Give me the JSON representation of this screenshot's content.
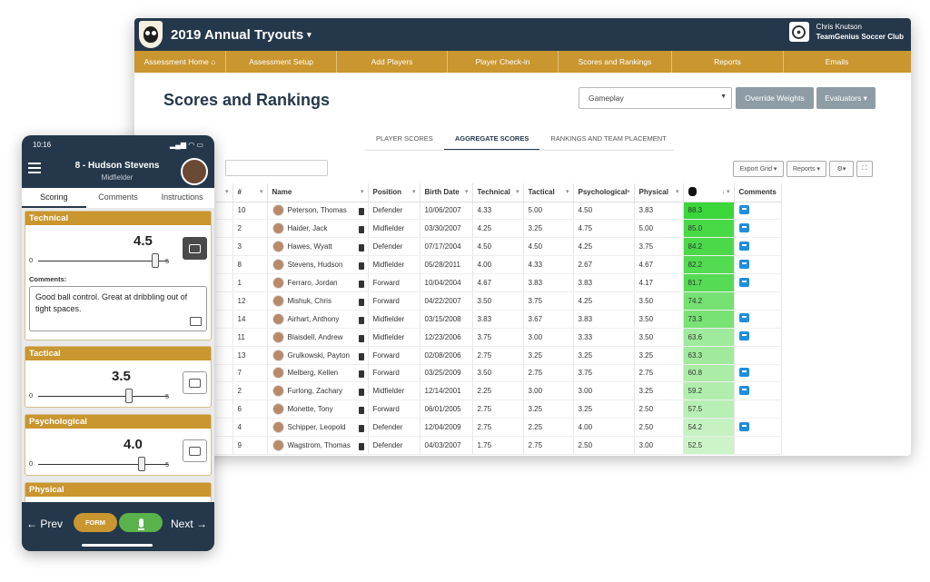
{
  "app": {
    "title": "2019 Annual Tryouts",
    "user_name": "Chris Knutson",
    "club_name": "TeamGenius Soccer Club"
  },
  "nav": [
    "Assessment Home",
    "Assessment Setup",
    "Add Players",
    "Player Check-in",
    "Scores and Rankings",
    "Reports",
    "Emails"
  ],
  "page": {
    "title": "Scores and Rankings",
    "select_value": "Gameplay",
    "override_weights": "Override Weights",
    "evaluators": "Evaluators"
  },
  "tabs": [
    "PLAYER SCORES",
    "AGGREGATE SCORES",
    "RANKINGS AND TEAM PLACEMENT"
  ],
  "toolbar": {
    "export_grid": "Export Grid",
    "reports": "Reports"
  },
  "grid": {
    "headers": [
      "#",
      "Name",
      "Position",
      "Birth Date",
      "Technical",
      "Tactical",
      "Psychological",
      "Physical",
      "",
      "Comments"
    ],
    "rows": [
      {
        "num": "10",
        "name": "Peterson, Thomas",
        "position": "Defender",
        "birth": "10/06/2007",
        "technical": "4.33",
        "tactical": "5.00",
        "psych": "4.50",
        "physical": "3.83",
        "score": "88.3",
        "comment": true
      },
      {
        "num": "2",
        "name": "Haider, Jack",
        "position": "Midfielder",
        "birth": "03/30/2007",
        "technical": "4.25",
        "tactical": "3.25",
        "psych": "4.75",
        "physical": "5.00",
        "score": "85.0",
        "comment": true
      },
      {
        "num": "3",
        "name": "Hawes, Wyatt",
        "position": "Defender",
        "birth": "07/17/2004",
        "technical": "4.50",
        "tactical": "4.50",
        "psych": "4.25",
        "physical": "3.75",
        "score": "84.2",
        "comment": true
      },
      {
        "num": "8",
        "name": "Stevens, Hudson",
        "position": "Midfielder",
        "birth": "05/28/2011",
        "technical": "4.00",
        "tactical": "4.33",
        "psych": "2.67",
        "physical": "4.67",
        "score": "82.2",
        "comment": true
      },
      {
        "num": "1",
        "name": "Ferraro, Jordan",
        "position": "Forward",
        "birth": "10/04/2004",
        "technical": "4.67",
        "tactical": "3.83",
        "psych": "3.83",
        "physical": "4.17",
        "score": "81.7",
        "comment": true
      },
      {
        "num": "12",
        "name": "Mishuk, Chris",
        "position": "Forward",
        "birth": "04/22/2007",
        "technical": "3.50",
        "tactical": "3.75",
        "psych": "4.25",
        "physical": "3.50",
        "score": "74.2",
        "comment": false
      },
      {
        "num": "14",
        "name": "Airhart, Anthony",
        "position": "Midfielder",
        "birth": "03/15/2008",
        "technical": "3.83",
        "tactical": "3.67",
        "psych": "3.83",
        "physical": "3.50",
        "score": "73.3",
        "comment": true
      },
      {
        "num": "11",
        "name": "Blaisdell, Andrew",
        "position": "Midfielder",
        "birth": "12/23/2006",
        "technical": "3.75",
        "tactical": "3.00",
        "psych": "3.33",
        "physical": "3.50",
        "score": "63.6",
        "comment": true
      },
      {
        "num": "13",
        "name": "Grulkowski, Payton",
        "position": "Forward",
        "birth": "02/08/2006",
        "technical": "2.75",
        "tactical": "3.25",
        "psych": "3.25",
        "physical": "3.25",
        "score": "63.3",
        "comment": false
      },
      {
        "num": "7",
        "name": "Melberg, Kellen",
        "position": "Forward",
        "birth": "03/25/2009",
        "technical": "3.50",
        "tactical": "2.75",
        "psych": "3.75",
        "physical": "2.75",
        "score": "60.8",
        "comment": true
      },
      {
        "num": "2",
        "name": "Furlong, Zachary",
        "position": "Midfielder",
        "birth": "12/14/2001",
        "technical": "2.25",
        "tactical": "3.00",
        "psych": "3.00",
        "physical": "3.25",
        "score": "59.2",
        "comment": true
      },
      {
        "num": "6",
        "name": "Monette, Tony",
        "position": "Forward",
        "birth": "06/01/2005",
        "technical": "2.75",
        "tactical": "3.25",
        "psych": "3.25",
        "physical": "2.50",
        "score": "57.5",
        "comment": false
      },
      {
        "num": "4",
        "name": "Schipper, Leopold",
        "position": "Defender",
        "birth": "12/04/2009",
        "technical": "2.75",
        "tactical": "2.25",
        "psych": "4.00",
        "physical": "2.50",
        "score": "54.2",
        "comment": true
      },
      {
        "num": "9",
        "name": "Wagstrom, Thomas",
        "position": "Defender",
        "birth": "04/03/2007",
        "technical": "1.75",
        "tactical": "2.75",
        "psych": "2.50",
        "physical": "3.00",
        "score": "52.5",
        "comment": false
      }
    ]
  },
  "phone": {
    "time": "10:16",
    "player_name": "8 - Hudson Stevens",
    "player_position": "Midfielder",
    "tabs": [
      "Scoring",
      "Comments",
      "Instructions"
    ],
    "min": "0",
    "max": "5",
    "comments_label": "Comments:",
    "comment_text": "Good ball control. Great at dribbling out of tight spaces.",
    "sections": [
      {
        "name": "Technical",
        "score": "4.5",
        "value": 4.5
      },
      {
        "name": "Tactical",
        "score": "3.5",
        "value": 3.5
      },
      {
        "name": "Psychological",
        "score": "4.0",
        "value": 4.0
      },
      {
        "name": "Physical"
      }
    ],
    "prev": "Prev",
    "form": "FORM",
    "next": "Next"
  }
}
